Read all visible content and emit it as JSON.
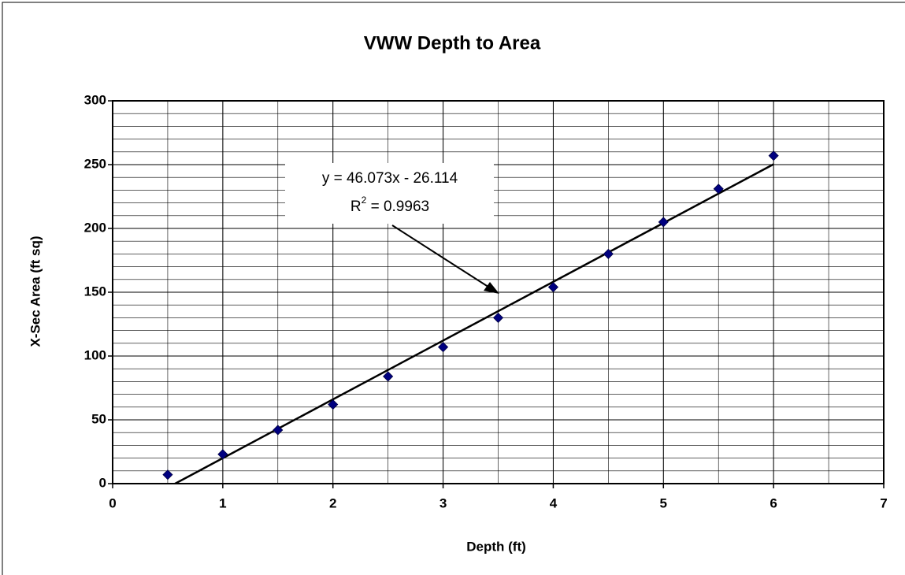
{
  "chart_data": {
    "type": "scatter",
    "title": "VWW Depth to Area",
    "xlabel": "Depth (ft)",
    "ylabel": "X-Sec Area (ft sq)",
    "x": [
      0.5,
      1,
      1.5,
      2,
      2.5,
      3,
      3.5,
      4,
      4.5,
      5,
      5.5,
      6
    ],
    "values": [
      7,
      23,
      42,
      62,
      84,
      107,
      130,
      154,
      180,
      205,
      231,
      257
    ],
    "color": "#000080",
    "xlim": [
      0,
      7
    ],
    "xticks": [
      0,
      1,
      2,
      3,
      4,
      5,
      6,
      7
    ],
    "ylim": [
      0,
      300
    ],
    "yticks": [
      0,
      50,
      100,
      150,
      200,
      250,
      300
    ],
    "grid": true,
    "minor_grid": {
      "x": 0.5,
      "y": 10
    },
    "trendline": {
      "slope": 46.073,
      "intercept": -26.114,
      "color": "#000000"
    },
    "annotation": {
      "equation": "y = 46.073x - 26.114",
      "r_base": "R",
      "r_sup": "2",
      "r_rest": " = 0.9963"
    }
  }
}
